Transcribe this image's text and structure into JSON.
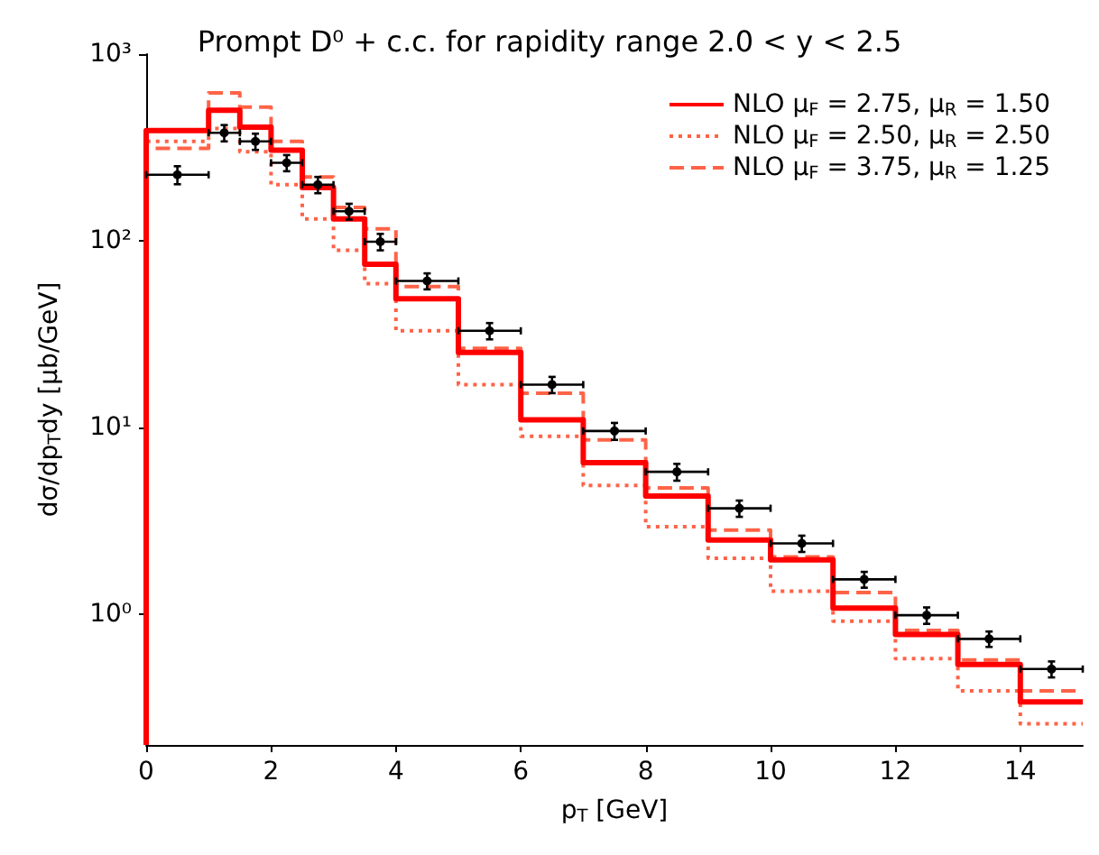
{
  "chart_data": {
    "type": "histogram",
    "title": "Prompt D⁰ + c.c. for rapidity range 2.0 < y < 2.5",
    "xlabel": "p$_{T}$ [GeV]",
    "ylabel": "dσ/dp$_{T}$dy [μb/GeV]",
    "bins": [
      0,
      1,
      1.5,
      2,
      2.5,
      3,
      3.5,
      4,
      5,
      6,
      7,
      8,
      9,
      10,
      11,
      12,
      13,
      14,
      15
    ],
    "series": [
      {
        "name": "NLO μ$_{F}$ = 2.75, μ$_{R}$ = 1.50",
        "color": "#ff0000",
        "line_style": "solid",
        "values": [
          390,
          500,
          406,
          306,
          193,
          131,
          75,
          49,
          25.3,
          11,
          6.5,
          4.3,
          2.5,
          1.96,
          1.08,
          0.78,
          0.54,
          0.34
        ]
      },
      {
        "name": "NLO μ$_{F}$ = 2.50, μ$_{R}$ = 2.50",
        "color": "#ff6347",
        "line_style": "dotted",
        "values": [
          341,
          400,
          300,
          200,
          131,
          89,
          59,
          33,
          17,
          9,
          4.9,
          2.95,
          2.0,
          1.33,
          0.92,
          0.58,
          0.39,
          0.26
        ]
      },
      {
        "name": "NLO μ$_{F}$ = 3.75, μ$_{R}$ = 1.25",
        "color": "#ff6347",
        "line_style": "dashed",
        "values": [
          313,
          620,
          520,
          341,
          220,
          151,
          116,
          57,
          26.6,
          15.3,
          8.6,
          4.75,
          2.83,
          2.03,
          1.31,
          0.82,
          0.57,
          0.39
        ]
      },
      {
        "type": "scatter",
        "color": "#000000",
        "marker": "circle",
        "x": [
          0.5,
          1.25,
          1.75,
          2.25,
          2.75,
          3.25,
          3.75,
          4.5,
          5.5,
          6.5,
          7.5,
          8.5,
          9.5,
          10.5,
          11.5,
          12.5,
          13.5,
          14.5
        ],
        "values": [
          226,
          379,
          341,
          262,
          200,
          144,
          99,
          61,
          33,
          17,
          9.6,
          5.8,
          3.7,
          2.4,
          1.54,
          0.99,
          0.74,
          0.51
        ],
        "errors": [
          25,
          38,
          34,
          26,
          20,
          14,
          10,
          6,
          3.3,
          1.7,
          1.0,
          0.6,
          0.37,
          0.24,
          0.15,
          0.1,
          0.07,
          0.05
        ],
        "xerrors": [
          0.5,
          0.25,
          0.25,
          0.25,
          0.25,
          0.25,
          0.25,
          0.5,
          0.5,
          0.5,
          0.5,
          0.5,
          0.5,
          0.5,
          0.5,
          0.5,
          0.5,
          0.5
        ]
      }
    ],
    "xlim": [
      0,
      15
    ],
    "xticks": [
      0,
      2,
      4,
      6,
      8,
      10,
      12,
      14
    ],
    "ylim": [
      0.2,
      1000
    ],
    "yticks": [
      {
        "value": 1,
        "label": "10⁰"
      },
      {
        "value": 10,
        "label": "10¹"
      },
      {
        "value": 100,
        "label": "10²"
      },
      {
        "value": 1000,
        "label": "10³"
      }
    ],
    "log": "y",
    "grid": false,
    "legend": "top right"
  }
}
